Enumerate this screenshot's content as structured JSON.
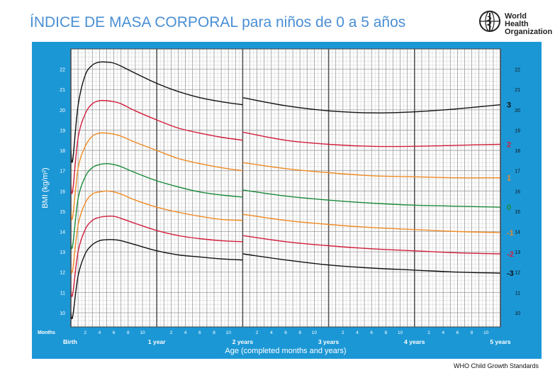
{
  "title": "ÍNDICE DE MASA CORPORAL para niños de 0 a 5 años",
  "logo": {
    "line1": "World Health",
    "line2": "Organization",
    "icon": "who-emblem-icon"
  },
  "footer": "WHO Child Growth Standards",
  "colors": {
    "frame": "#1c97d5",
    "grid": "#b8b8b8",
    "black": "#111111",
    "red": "#d21f3c",
    "orange": "#f08a24",
    "green": "#1a8a3a"
  },
  "chart_data": {
    "type": "line",
    "title": "ÍNDICE DE MASA CORPORAL para niños de 0 a 5 años",
    "xlabel": "Age (completed months and years)",
    "ylabel": "BMI (kg/m²)",
    "x_unit_label": "Months",
    "xlim": [
      0,
      60
    ],
    "ylim": [
      9.3,
      23
    ],
    "grid": true,
    "year_labels": [
      {
        "month": 0,
        "label": "Birth"
      },
      {
        "month": 12,
        "label": "1 year"
      },
      {
        "month": 24,
        "label": "2 years"
      },
      {
        "month": 36,
        "label": "3 years"
      },
      {
        "month": 48,
        "label": "4 years"
      },
      {
        "month": 60,
        "label": "5 years"
      }
    ],
    "month_ticks": [
      "2",
      "4",
      "6",
      "8",
      "10"
    ],
    "y_ticks": [
      10,
      11,
      12,
      13,
      14,
      15,
      16,
      17,
      18,
      19,
      20,
      21,
      22
    ],
    "series": [
      {
        "name": "3",
        "color": "#111111",
        "points": [
          [
            0,
            18.0
          ],
          [
            0.25,
            17.5
          ],
          [
            1,
            20.2
          ],
          [
            2,
            21.7
          ],
          [
            3,
            22.2
          ],
          [
            4,
            22.35
          ],
          [
            5,
            22.35
          ],
          [
            6,
            22.3
          ],
          [
            7,
            22.15
          ],
          [
            9,
            21.8
          ],
          [
            12,
            21.3
          ],
          [
            15,
            20.9
          ],
          [
            18,
            20.6
          ],
          [
            21,
            20.4
          ],
          [
            24,
            20.25
          ],
          [
            24.01,
            20.6
          ],
          [
            30,
            20.2
          ],
          [
            36,
            19.95
          ],
          [
            42,
            19.85
          ],
          [
            48,
            19.9
          ],
          [
            54,
            20.05
          ],
          [
            60,
            20.25
          ]
        ]
      },
      {
        "name": "2",
        "color": "#d21f3c",
        "points": [
          [
            0,
            16.3
          ],
          [
            0.25,
            16.0
          ],
          [
            1,
            18.6
          ],
          [
            2,
            19.8
          ],
          [
            3,
            20.3
          ],
          [
            4,
            20.45
          ],
          [
            5,
            20.45
          ],
          [
            6,
            20.4
          ],
          [
            7,
            20.3
          ],
          [
            9,
            19.95
          ],
          [
            12,
            19.5
          ],
          [
            15,
            19.1
          ],
          [
            18,
            18.85
          ],
          [
            21,
            18.65
          ],
          [
            24,
            18.5
          ],
          [
            24.01,
            18.9
          ],
          [
            30,
            18.5
          ],
          [
            36,
            18.3
          ],
          [
            42,
            18.2
          ],
          [
            48,
            18.2
          ],
          [
            54,
            18.25
          ],
          [
            60,
            18.3
          ]
        ]
      },
      {
        "name": "1",
        "color": "#f08a24",
        "points": [
          [
            0,
            15.0
          ],
          [
            0.25,
            14.7
          ],
          [
            1,
            17.1
          ],
          [
            2,
            18.2
          ],
          [
            3,
            18.7
          ],
          [
            4,
            18.85
          ],
          [
            5,
            18.85
          ],
          [
            6,
            18.8
          ],
          [
            7,
            18.7
          ],
          [
            9,
            18.4
          ],
          [
            12,
            18.0
          ],
          [
            15,
            17.6
          ],
          [
            18,
            17.35
          ],
          [
            21,
            17.15
          ],
          [
            24,
            17.0
          ],
          [
            24.01,
            17.4
          ],
          [
            30,
            17.1
          ],
          [
            36,
            16.9
          ],
          [
            42,
            16.75
          ],
          [
            48,
            16.7
          ],
          [
            54,
            16.65
          ],
          [
            60,
            16.65
          ]
        ]
      },
      {
        "name": "0",
        "color": "#1a8a3a",
        "points": [
          [
            0,
            13.4
          ],
          [
            0.25,
            13.3
          ],
          [
            1,
            15.6
          ],
          [
            2,
            16.7
          ],
          [
            3,
            17.15
          ],
          [
            4,
            17.3
          ],
          [
            5,
            17.35
          ],
          [
            6,
            17.3
          ],
          [
            7,
            17.2
          ],
          [
            9,
            16.9
          ],
          [
            12,
            16.5
          ],
          [
            15,
            16.2
          ],
          [
            18,
            15.95
          ],
          [
            21,
            15.8
          ],
          [
            24,
            15.7
          ],
          [
            24.01,
            16.05
          ],
          [
            30,
            15.75
          ],
          [
            36,
            15.55
          ],
          [
            42,
            15.4
          ],
          [
            48,
            15.3
          ],
          [
            54,
            15.25
          ],
          [
            60,
            15.2
          ]
        ]
      },
      {
        "name": "-1",
        "color": "#f08a24",
        "points": [
          [
            0,
            12.2
          ],
          [
            0.25,
            12.1
          ],
          [
            1,
            14.3
          ],
          [
            2,
            15.4
          ],
          [
            3,
            15.85
          ],
          [
            4,
            15.95
          ],
          [
            5,
            16.0
          ],
          [
            6,
            15.95
          ],
          [
            7,
            15.85
          ],
          [
            9,
            15.55
          ],
          [
            12,
            15.2
          ],
          [
            15,
            14.95
          ],
          [
            18,
            14.75
          ],
          [
            21,
            14.6
          ],
          [
            24,
            14.55
          ],
          [
            24.01,
            14.85
          ],
          [
            30,
            14.55
          ],
          [
            36,
            14.35
          ],
          [
            42,
            14.2
          ],
          [
            48,
            14.1
          ],
          [
            54,
            14.0
          ],
          [
            60,
            13.95
          ]
        ]
      },
      {
        "name": "-2",
        "color": "#d21f3c",
        "points": [
          [
            0,
            11.1
          ],
          [
            0.25,
            10.9
          ],
          [
            1,
            13.0
          ],
          [
            2,
            14.1
          ],
          [
            3,
            14.55
          ],
          [
            4,
            14.7
          ],
          [
            5,
            14.75
          ],
          [
            6,
            14.75
          ],
          [
            7,
            14.65
          ],
          [
            9,
            14.4
          ],
          [
            12,
            14.05
          ],
          [
            15,
            13.8
          ],
          [
            18,
            13.65
          ],
          [
            21,
            13.55
          ],
          [
            24,
            13.5
          ],
          [
            24.01,
            13.8
          ],
          [
            30,
            13.5
          ],
          [
            36,
            13.3
          ],
          [
            42,
            13.15
          ],
          [
            48,
            13.05
          ],
          [
            54,
            12.95
          ],
          [
            60,
            12.9
          ]
        ]
      },
      {
        "name": "-3",
        "color": "#111111",
        "points": [
          [
            0,
            10.0
          ],
          [
            0.25,
            9.8
          ],
          [
            1,
            11.8
          ],
          [
            2,
            12.9
          ],
          [
            3,
            13.35
          ],
          [
            4,
            13.55
          ],
          [
            5,
            13.6
          ],
          [
            6,
            13.6
          ],
          [
            7,
            13.55
          ],
          [
            9,
            13.35
          ],
          [
            12,
            13.05
          ],
          [
            15,
            12.85
          ],
          [
            18,
            12.75
          ],
          [
            21,
            12.65
          ],
          [
            24,
            12.6
          ],
          [
            24.01,
            12.9
          ],
          [
            30,
            12.6
          ],
          [
            36,
            12.35
          ],
          [
            42,
            12.2
          ],
          [
            48,
            12.1
          ],
          [
            54,
            12.0
          ],
          [
            60,
            11.95
          ]
        ]
      }
    ]
  }
}
